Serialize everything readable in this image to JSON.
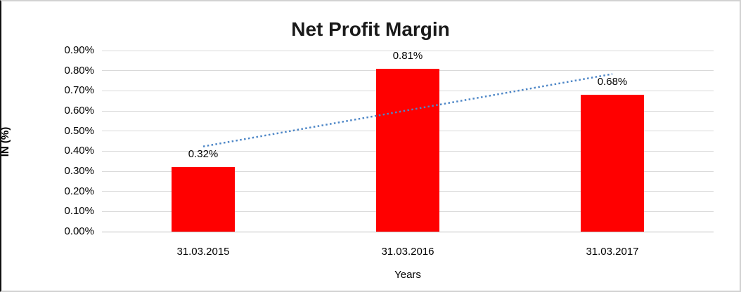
{
  "window": {
    "background": "#FFFFFF",
    "border_color": "#D2D2D2",
    "left_edge_color": "#111111"
  },
  "chart_data": {
    "type": "bar",
    "title": "Net Profit Margin",
    "xlabel": "Years",
    "ylabel": "IN (%)",
    "categories": [
      "31.03.2015",
      "31.03.2016",
      "31.03.2017"
    ],
    "values": [
      0.32,
      0.81,
      0.68
    ],
    "data_labels": [
      "0.32%",
      "0.81%",
      "0.68%"
    ],
    "ylim": [
      0,
      0.9
    ],
    "ytick_values": [
      0.0,
      0.1,
      0.2,
      0.3,
      0.4,
      0.5,
      0.6,
      0.7,
      0.8,
      0.9
    ],
    "ytick_labels": [
      "0.00%",
      "0.10%",
      "0.20%",
      "0.30%",
      "0.40%",
      "0.50%",
      "0.60%",
      "0.70%",
      "0.80%",
      "0.90%"
    ],
    "grid": true,
    "legend": "none",
    "bar_color": "#FF0000",
    "gridline_color": "#D9D9D9",
    "axis_line_color": "#BFBFBF",
    "text_color": "#000000",
    "trendline": {
      "type": "linear",
      "style": "dotted",
      "color": "#4E87C7",
      "endpoint_values": [
        0.4233,
        0.7833
      ]
    }
  }
}
